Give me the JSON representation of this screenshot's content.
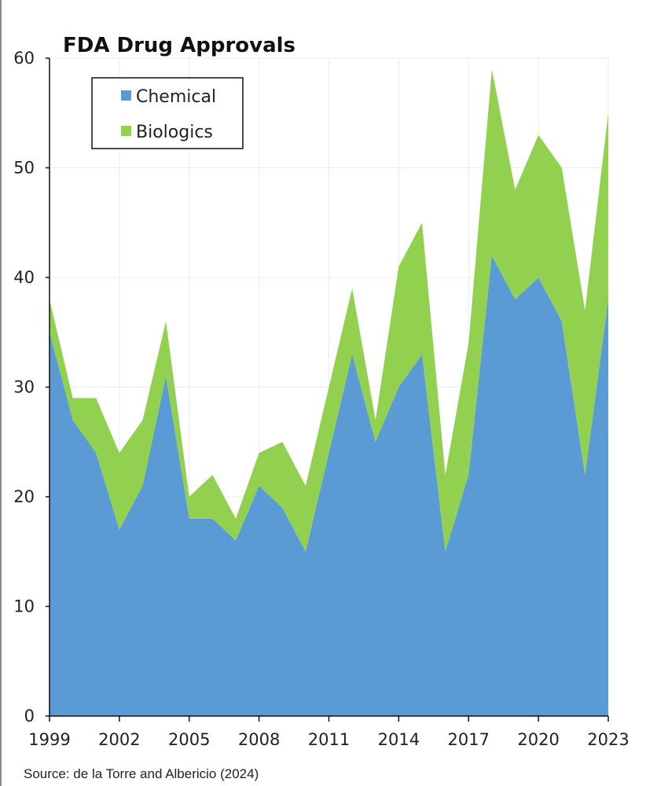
{
  "chart_data": {
    "type": "area",
    "stacked": true,
    "title": "FDA Drug Approvals",
    "xlabel": "",
    "ylabel": "",
    "xlim": [
      1999,
      2023
    ],
    "ylim": [
      0,
      60
    ],
    "x_ticks": [
      1999,
      2002,
      2005,
      2008,
      2011,
      2014,
      2017,
      2020,
      2023
    ],
    "y_ticks": [
      0,
      10,
      20,
      30,
      40,
      50,
      60
    ],
    "grid": "horizontal",
    "legend_position": "top-left",
    "x": [
      1999,
      2000,
      2001,
      2002,
      2003,
      2004,
      2005,
      2006,
      2007,
      2008,
      2009,
      2010,
      2011,
      2012,
      2013,
      2014,
      2015,
      2016,
      2017,
      2018,
      2019,
      2020,
      2021,
      2022,
      2023
    ],
    "series": [
      {
        "name": "Chemical",
        "color": "#5b9bd5",
        "values": [
          35,
          27,
          24,
          17,
          21,
          31,
          18,
          18,
          16,
          21,
          19,
          15,
          24,
          33,
          25,
          30,
          33,
          15,
          22,
          42,
          38,
          40,
          36,
          22,
          38
        ]
      },
      {
        "name": "Biologics",
        "color": "#92d050",
        "values": [
          3,
          2,
          5,
          7,
          6,
          5,
          2,
          4,
          2,
          3,
          6,
          6,
          6,
          6,
          2,
          11,
          12,
          7,
          12,
          17,
          10,
          13,
          14,
          15,
          17
        ]
      }
    ],
    "source": "Source: de la Torre and Albericio (2024)"
  }
}
